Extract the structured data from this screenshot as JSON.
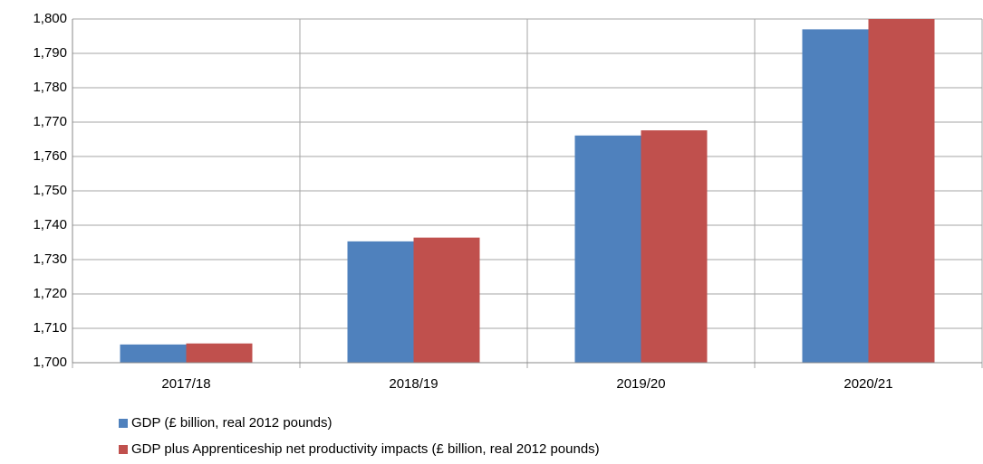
{
  "chart_data": {
    "type": "bar",
    "categories": [
      "2017/18",
      "2018/19",
      "2019/20",
      "2020/21"
    ],
    "series": [
      {
        "name": "GDP (£ billion, real 2012 pounds)",
        "color": "#4f81bd",
        "values": [
          1705.3,
          1735.3,
          1766.1,
          1797
        ]
      },
      {
        "name": "GDP plus Apprenticeship net productivity impacts (£ billion, real 2012 pounds)",
        "color": "#c0504d",
        "values": [
          1705.6,
          1736.4,
          1767.6,
          1800
        ]
      }
    ],
    "ylim": [
      1700,
      1800
    ],
    "yticks": [
      {
        "value": 1700,
        "label": "1,700"
      },
      {
        "value": 1710,
        "label": "1,710"
      },
      {
        "value": 1720,
        "label": "1,720"
      },
      {
        "value": 1730,
        "label": "1,730"
      },
      {
        "value": 1740,
        "label": "1,740"
      },
      {
        "value": 1750,
        "label": "1,750"
      },
      {
        "value": 1760,
        "label": "1,760"
      },
      {
        "value": 1770,
        "label": "1,770"
      },
      {
        "value": 1780,
        "label": "1,780"
      },
      {
        "value": 1790,
        "label": "1,790"
      },
      {
        "value": 1800,
        "label": "1,800"
      }
    ],
    "grid": true,
    "legend": "bottom"
  }
}
